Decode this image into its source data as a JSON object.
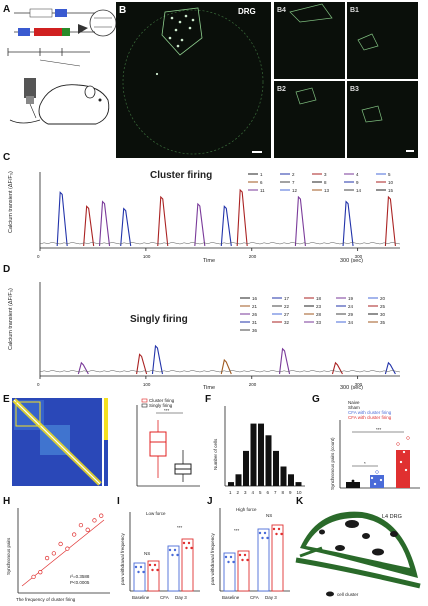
{
  "figure": {
    "panel_letters": [
      "A",
      "B",
      "C",
      "D",
      "E",
      "F",
      "G",
      "H",
      "I",
      "J",
      "K"
    ],
    "b_label": "DRG",
    "b_subpanels": [
      "B4",
      "B1",
      "B2",
      "B3"
    ],
    "c_title": "Cluster firing",
    "d_title": "Singly firing",
    "c_ylabel": "Calcium transient (ΔF/F₀)",
    "d_ylabel": "Calcium transient (ΔF/F₀)",
    "x_label": "Time",
    "x_end_label": "300 (sec)",
    "x_ticks": [
      "0",
      "100",
      "200",
      "300"
    ],
    "c_legend": [
      "1",
      "2",
      "3",
      "4",
      "5",
      "6",
      "7",
      "8",
      "9",
      "10",
      "11",
      "12",
      "13",
      "14",
      "15"
    ],
    "d_legend": [
      "16",
      "17",
      "18",
      "19",
      "20",
      "21",
      "22",
      "23",
      "24",
      "25",
      "26",
      "27",
      "28",
      "29",
      "30",
      "31",
      "32",
      "33",
      "34",
      "35",
      "36"
    ],
    "e_box_legend": [
      "Cluster firing",
      "Singly firing"
    ],
    "e_sig": "***",
    "f_ylabel": "Number of cells",
    "f_xlabels": [
      "1",
      "2",
      "3",
      "4",
      "5",
      "6",
      "7",
      "8",
      "9",
      "10"
    ],
    "g_ylabel": "Synchronous pairs (count)",
    "g_legend": [
      "Naive",
      "Sham",
      "CFA with cluster firing",
      "CFA with cluster firing"
    ],
    "g_sig": [
      "*",
      "***"
    ],
    "h_ylabel": "Synchronous pairs",
    "h_xlabel": "The frequency of cluster firing",
    "h_stats": [
      "r²=0.3588",
      "P<0.0005"
    ],
    "i_title": "Low force",
    "j_title": "High force",
    "i_ylabel": "paw withdrawal frequency",
    "j_ylabel": "paw withdrawal frequency",
    "i_xlabels": [
      "Baseline",
      "CFA",
      "Day 3"
    ],
    "j_xlabels": [
      "Baseline",
      "CFA",
      "Day 3"
    ],
    "i_sig": [
      "NS",
      "***"
    ],
    "j_sig": [
      "***",
      "NS"
    ],
    "k_label": "L4 DRG",
    "k_legend": "cell cluster",
    "colors": {
      "b_bg": "#0a0f0a",
      "trace_blue": "#2233aa",
      "trace_red": "#aa2222",
      "trace_purple": "#7a3a9a",
      "box_red": "#e02020",
      "bar_red": "#e03030",
      "bar_blue": "#4a6bd8",
      "bar_black": "#111111",
      "drg_green": "#2a6a2a"
    }
  },
  "chart_data": [
    {
      "type": "line",
      "title": "Cluster firing",
      "ylabel": "Calcium transient (ΔF/F₀)",
      "xlabel": "Time",
      "xlim": [
        0,
        300
      ],
      "ylim": [
        0,
        1.5
      ],
      "peaks": [
        {
          "x": 20,
          "y": 1.15
        },
        {
          "x": 45,
          "y": 0.85
        },
        {
          "x": 60,
          "y": 0.95
        },
        {
          "x": 80,
          "y": 0.8
        },
        {
          "x": 115,
          "y": 1.05
        },
        {
          "x": 150,
          "y": 0.9
        },
        {
          "x": 175,
          "y": 0.85
        },
        {
          "x": 190,
          "y": 1.2
        },
        {
          "x": 245,
          "y": 1.05
        },
        {
          "x": 290,
          "y": 0.95
        },
        {
          "x": 330,
          "y": 1.05
        }
      ]
    },
    {
      "type": "line",
      "title": "Singly firing",
      "ylabel": "Calcium transient (ΔF/F₀)",
      "xlabel": "Time",
      "xlim": [
        0,
        300
      ],
      "ylim": [
        0,
        1.5
      ],
      "peaks": [
        {
          "x": 40,
          "y": 0.2
        },
        {
          "x": 95,
          "y": 0.35
        },
        {
          "x": 110,
          "y": 0.5
        },
        {
          "x": 175,
          "y": 0.25
        },
        {
          "x": 230,
          "y": 0.45
        },
        {
          "x": 280,
          "y": 0.2
        },
        {
          "x": 330,
          "y": 0.2
        }
      ]
    },
    {
      "type": "bar",
      "title": "",
      "ylabel": "Number of cells",
      "categories": [
        "1",
        "2",
        "3",
        "4",
        "5",
        "6",
        "7",
        "8",
        "9",
        "10"
      ],
      "values": [
        1,
        3,
        9,
        16,
        16,
        13,
        9,
        5,
        3,
        1
      ],
      "ylim": [
        0,
        20
      ]
    },
    {
      "type": "scatter",
      "xlabel": "The frequency of cluster firing",
      "ylabel": "Synchronous pairs",
      "points": [
        [
          1.0,
          1.5
        ],
        [
          1.5,
          2.0
        ],
        [
          2.0,
          3.5
        ],
        [
          2.5,
          4.0
        ],
        [
          3.0,
          5.0
        ],
        [
          3.5,
          4.5
        ],
        [
          4.0,
          6.0
        ],
        [
          4.5,
          7.0
        ],
        [
          5.0,
          6.5
        ],
        [
          5.5,
          7.5
        ],
        [
          6.0,
          8.0
        ]
      ]
    }
  ]
}
